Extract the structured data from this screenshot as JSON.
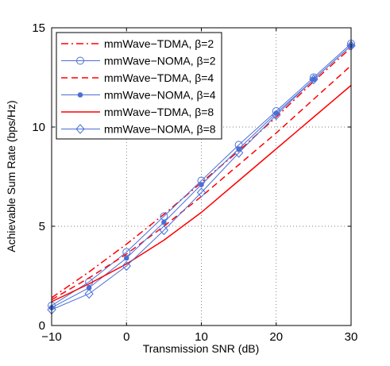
{
  "chart_data": {
    "type": "line",
    "xlabel": "Transmission SNR (dB)",
    "ylabel": "Achievable Sum Rate (bps/Hz)",
    "xlim": [
      -10,
      30
    ],
    "ylim": [
      0,
      15
    ],
    "xticks": [
      -10,
      0,
      10,
      20,
      30
    ],
    "yticks": [
      0,
      5,
      10,
      15
    ],
    "xtick_labels": [
      "−10",
      "0",
      "10",
      "20",
      "30"
    ],
    "ytick_labels": [
      "0",
      "5",
      "10",
      "15"
    ],
    "grid": true,
    "legend_position": "top-left",
    "x": [
      -10,
      -5,
      0,
      5,
      10,
      15,
      20,
      25,
      30
    ],
    "series": [
      {
        "name": "mmWave−TDMA, β=2",
        "color": "#ff0000",
        "linestyle": "dashdot",
        "marker": "none",
        "values": [
          1.4,
          2.7,
          4.1,
          5.6,
          7.2,
          8.8,
          10.5,
          12.3,
          14.0
        ]
      },
      {
        "name": "mmWave−NOMA, β=2",
        "color": "#4a6fd6",
        "linestyle": "solid",
        "marker": "circle",
        "values": [
          1.0,
          2.2,
          3.7,
          5.5,
          7.3,
          9.1,
          10.8,
          12.5,
          14.2
        ]
      },
      {
        "name": "mmWave−TDMA, β=4",
        "color": "#ff0000",
        "linestyle": "dashed",
        "marker": "none",
        "values": [
          1.3,
          2.4,
          3.6,
          5.0,
          6.5,
          8.1,
          9.7,
          11.4,
          13.1
        ]
      },
      {
        "name": "mmWave−NOMA, β=4",
        "color": "#4a6fd6",
        "linestyle": "solid",
        "marker": "dot",
        "values": [
          0.9,
          1.9,
          3.4,
          5.2,
          7.1,
          8.9,
          10.7,
          12.4,
          14.1
        ]
      },
      {
        "name": "mmWave−TDMA, β=8",
        "color": "#ff0000",
        "linestyle": "solid",
        "marker": "none",
        "values": [
          1.2,
          2.1,
          3.1,
          4.3,
          5.7,
          7.3,
          8.9,
          10.5,
          12.1
        ]
      },
      {
        "name": "mmWave−NOMA, β=8",
        "color": "#4a6fd6",
        "linestyle": "solid",
        "marker": "diamond",
        "values": [
          0.8,
          1.6,
          3.0,
          4.8,
          6.7,
          8.7,
          10.6,
          12.4,
          14.1
        ]
      }
    ]
  }
}
